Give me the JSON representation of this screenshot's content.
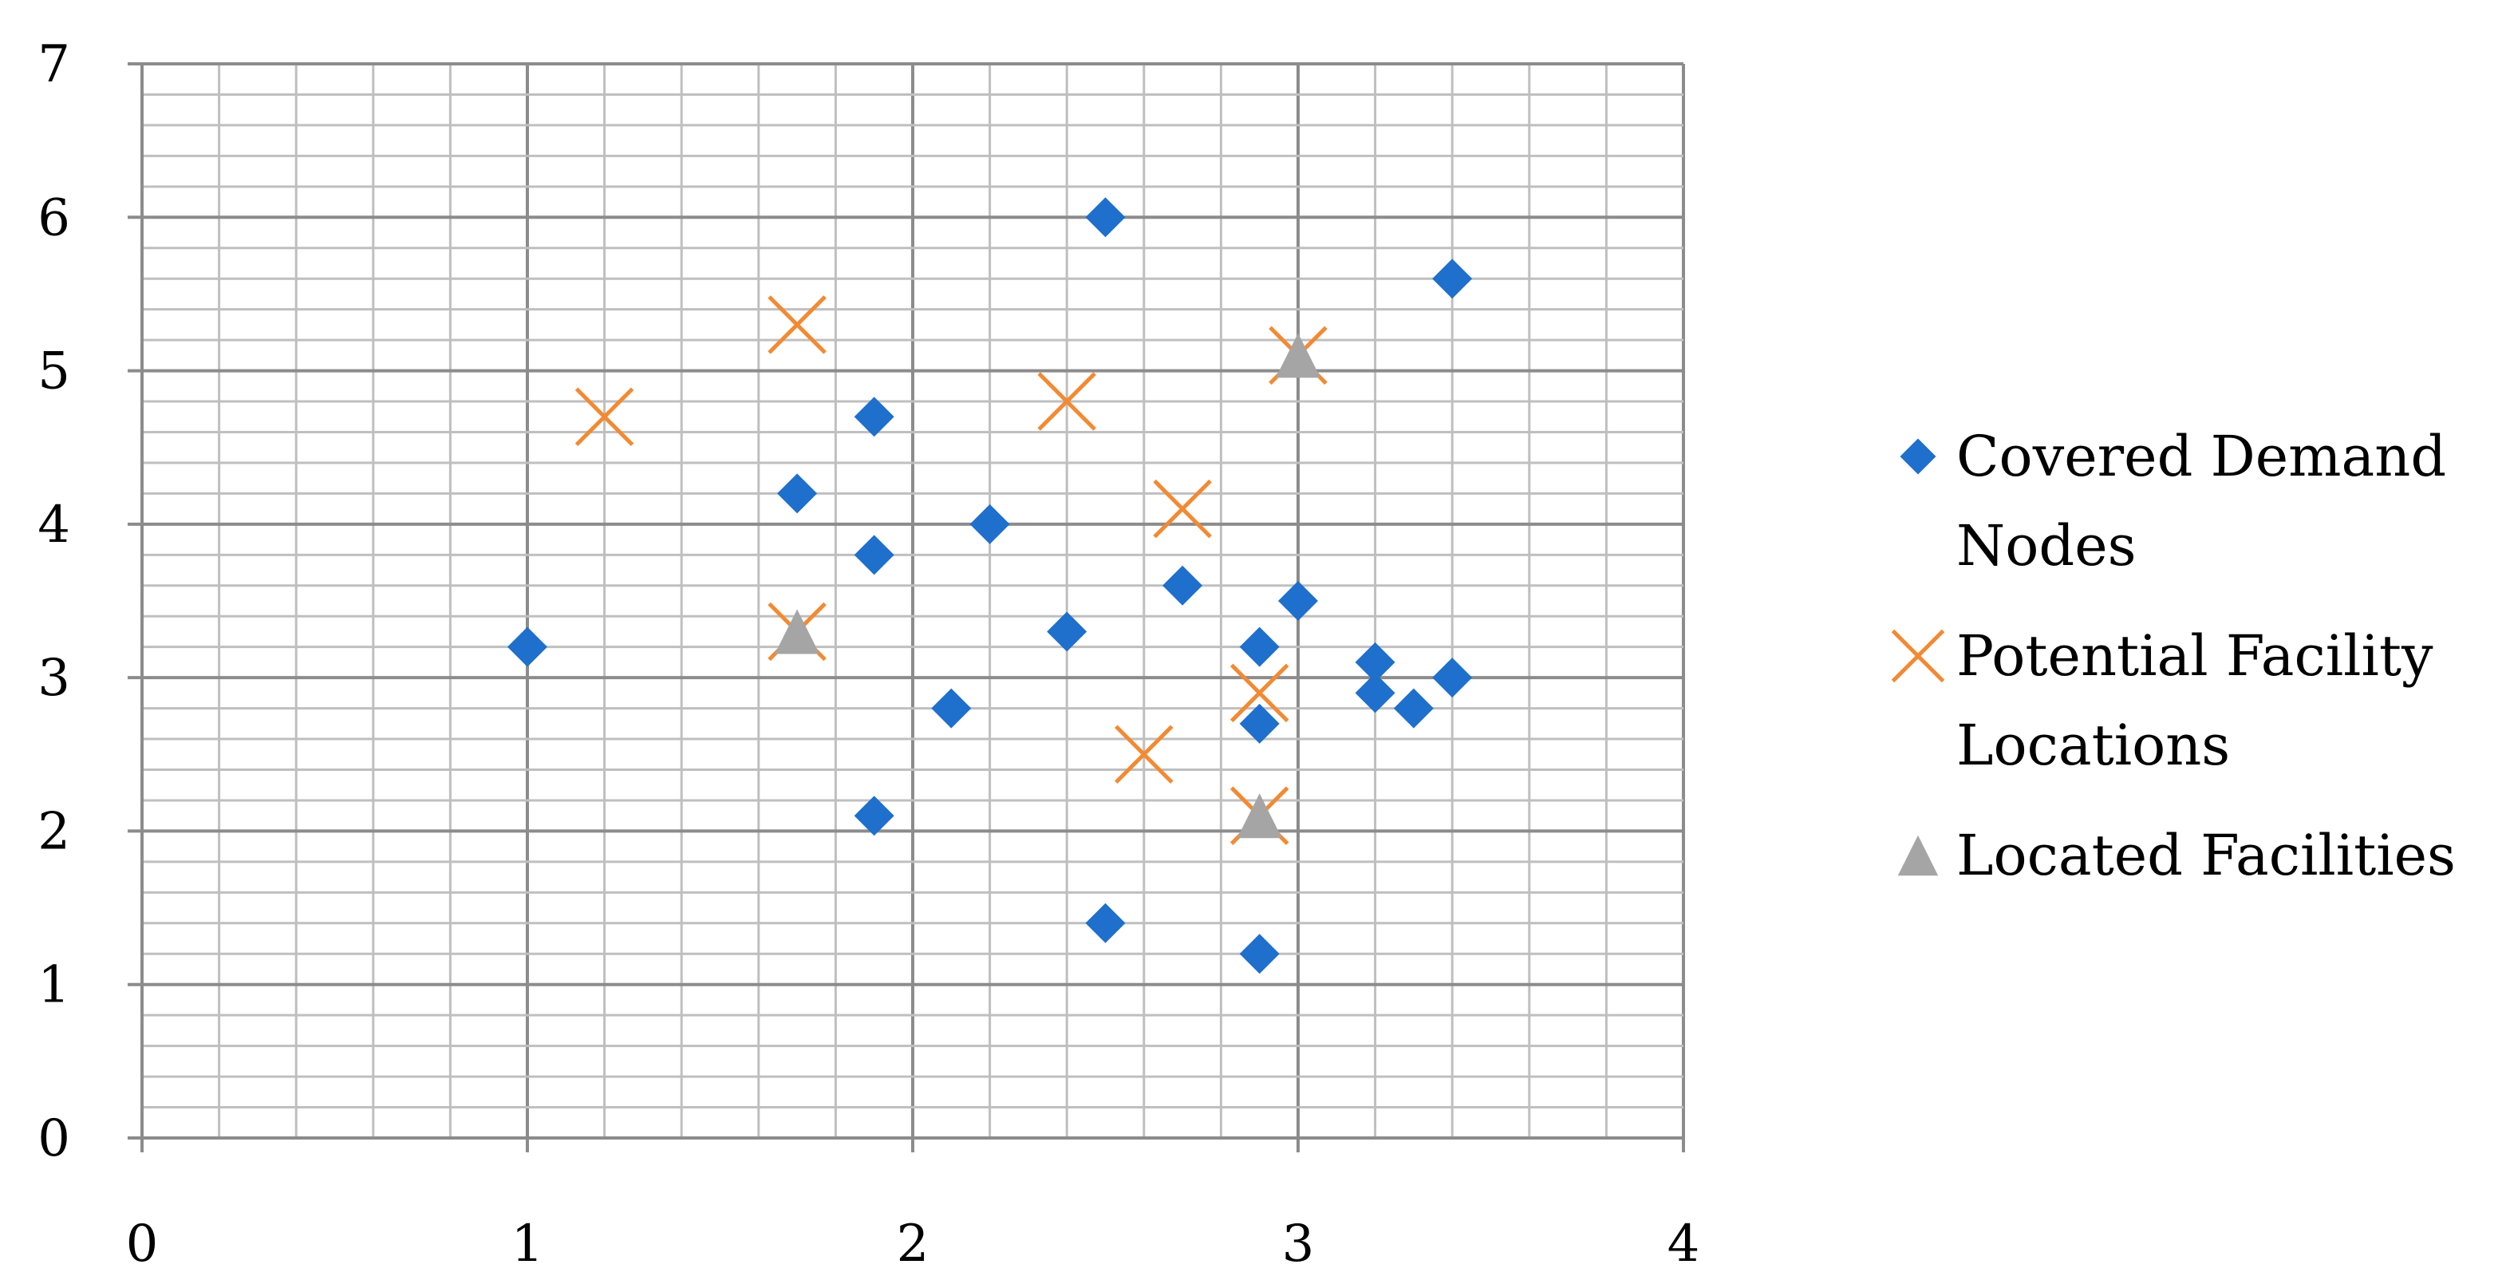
{
  "chart_data": {
    "type": "scatter",
    "xlim": [
      0,
      4
    ],
    "ylim": [
      0,
      7
    ],
    "x_ticks": [
      "0",
      "1",
      "2",
      "3",
      "4"
    ],
    "y_ticks": [
      "0",
      "1",
      "2",
      "3",
      "4",
      "5",
      "6",
      "7"
    ],
    "grid": true,
    "legend_position": "right",
    "series": [
      {
        "name": "Covered Demand Nodes",
        "marker": "diamond",
        "color": "#1F6FCC",
        "points": [
          [
            1.0,
            3.2
          ],
          [
            1.7,
            4.2
          ],
          [
            1.9,
            4.7
          ],
          [
            1.9,
            3.8
          ],
          [
            1.9,
            2.1
          ],
          [
            2.1,
            2.8
          ],
          [
            2.2,
            4.0
          ],
          [
            2.4,
            3.3
          ],
          [
            2.5,
            6.0
          ],
          [
            2.5,
            1.4
          ],
          [
            2.7,
            3.6
          ],
          [
            2.9,
            3.2
          ],
          [
            2.9,
            2.7
          ],
          [
            2.9,
            1.2
          ],
          [
            3.0,
            3.5
          ],
          [
            3.2,
            3.1
          ],
          [
            3.2,
            2.9
          ],
          [
            3.3,
            2.8
          ],
          [
            3.4,
            5.6
          ],
          [
            3.4,
            3.0
          ]
        ]
      },
      {
        "name": "Potential Facility Locations",
        "marker": "x",
        "color": "#F28A33",
        "points": [
          [
            1.2,
            4.7
          ],
          [
            1.7,
            5.3
          ],
          [
            1.7,
            3.3
          ],
          [
            2.4,
            4.8
          ],
          [
            2.6,
            2.5
          ],
          [
            2.7,
            4.1
          ],
          [
            2.9,
            2.9
          ],
          [
            2.9,
            2.1
          ],
          [
            3.0,
            5.1
          ]
        ]
      },
      {
        "name": "Located Facilities",
        "marker": "triangle",
        "color": "#A5A5A5",
        "points": [
          [
            1.7,
            3.3
          ],
          [
            2.9,
            2.1
          ],
          [
            3.0,
            5.1
          ]
        ]
      }
    ],
    "legend": [
      {
        "lines": [
          "Covered Demand",
          "Nodes"
        ]
      },
      {
        "lines": [
          "Potential Facility",
          "Locations"
        ]
      },
      {
        "lines": [
          "Located Facilities"
        ]
      }
    ],
    "colors": {
      "major_grid": "#8C8C8C",
      "minor_grid": "#BFBFBF",
      "axis": "#8C8C8C"
    }
  }
}
